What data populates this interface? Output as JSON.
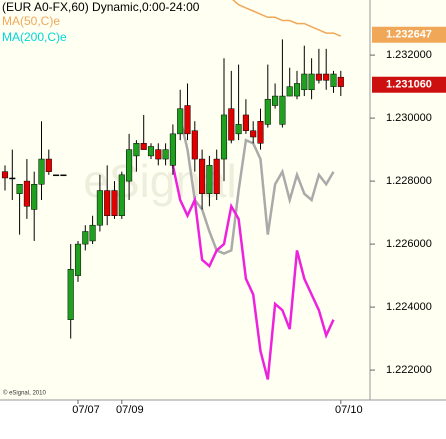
{
  "chart_data": {
    "type": "candlestick",
    "title": "(EUR A0-FX,60) Dynamic,0:00-24:00",
    "watermark": "eSignal",
    "copyright": "© eSignal, 2010",
    "categories": [
      null,
      null,
      null,
      null,
      null,
      null,
      null,
      null,
      null,
      null,
      "07/07",
      null,
      null,
      null,
      null,
      null,
      "07/09",
      null,
      null,
      null,
      null,
      null,
      null,
      null,
      null,
      null,
      null,
      null,
      null,
      null,
      null,
      null,
      null,
      null,
      null,
      null,
      null,
      null,
      null,
      null,
      null,
      null,
      null,
      null,
      null,
      null,
      "07/10"
    ],
    "open": [
      1.2283,
      1.2281,
      1.2276,
      1.228,
      1.2271,
      1.2279,
      1.2287,
      1.2282,
      1.2282,
      1.2236,
      1.225,
      1.226,
      1.2261,
      1.2266,
      1.2277,
      1.2277,
      1.2269,
      1.228,
      1.2288,
      1.2292,
      1.2288,
      1.229,
      1.2287,
      1.2285,
      1.2295,
      1.2304,
      1.2296,
      1.2287,
      1.2276,
      1.2287,
      1.2287,
      1.2303,
      1.2295,
      1.2301,
      1.2296,
      1.2299,
      1.2298,
      1.2304,
      1.2298,
      1.2307,
      1.2307,
      1.2309,
      1.2309,
      1.2314,
      1.2314,
      1.231,
      1.2313
    ],
    "high": [
      1.2285,
      1.229,
      1.2279,
      1.2287,
      1.2283,
      1.2299,
      1.229,
      1.2282,
      1.2282,
      1.226,
      1.2261,
      1.2266,
      1.2269,
      1.2282,
      1.2285,
      1.228,
      1.2283,
      1.2295,
      1.2293,
      1.2301,
      1.2292,
      1.2292,
      1.2292,
      1.2298,
      1.2309,
      1.2311,
      1.2299,
      1.229,
      1.2288,
      1.229,
      1.2319,
      1.2315,
      1.2317,
      1.2306,
      1.2299,
      1.2303,
      1.2317,
      1.2311,
      1.2325,
      1.2316,
      1.2315,
      1.2323,
      1.2319,
      1.2322,
      1.2322,
      1.2315,
      1.2315
    ],
    "low": [
      1.2277,
      1.2274,
      1.2263,
      1.2268,
      1.2261,
      1.2274,
      1.2282,
      1.2282,
      1.2282,
      1.223,
      1.2248,
      1.2258,
      1.226,
      1.2264,
      1.2266,
      1.2268,
      1.2268,
      1.2274,
      1.2283,
      1.229,
      1.2287,
      1.2285,
      1.2285,
      1.2282,
      1.2293,
      1.2293,
      1.2283,
      1.2271,
      1.2272,
      1.2274,
      1.228,
      1.2292,
      1.2293,
      1.2295,
      1.2292,
      1.229,
      1.2297,
      1.2303,
      1.2297,
      1.2307,
      1.2306,
      1.2307,
      1.2306,
      1.2311,
      1.2309,
      1.2308,
      1.2307
    ],
    "close": [
      1.2281,
      1.2281,
      1.2279,
      1.2272,
      1.2279,
      1.2287,
      1.2283,
      1.2282,
      1.2282,
      1.2252,
      1.226,
      1.2264,
      1.2266,
      1.2277,
      1.2269,
      1.2269,
      1.2282,
      1.229,
      1.2292,
      1.229,
      1.2291,
      1.2287,
      1.229,
      1.2295,
      1.2303,
      1.2295,
      1.2287,
      1.2276,
      1.2285,
      1.2276,
      1.2301,
      1.2293,
      1.2298,
      1.2296,
      1.2294,
      1.2292,
      1.2306,
      1.2307,
      1.2307,
      1.231,
      1.2311,
      1.2314,
      1.2314,
      1.2312,
      1.2312,
      1.2314,
      1.231
    ],
    "up_color": "#1fa01f",
    "down_color": "#e00000",
    "series": [
      {
        "name": "MA(50,C)e",
        "color": "#f0a858",
        "values": [
          null,
          null,
          null,
          null,
          null,
          null,
          null,
          null,
          null,
          null,
          null,
          null,
          null,
          null,
          null,
          null,
          null,
          null,
          null,
          null,
          null,
          null,
          null,
          null,
          null,
          null,
          null,
          null,
          null,
          null,
          null,
          1.2338,
          1.2336,
          1.2335,
          1.2334,
          1.2333,
          1.2332,
          1.2332,
          1.2331,
          1.2331,
          1.233,
          1.233,
          1.2329,
          1.2328,
          1.2327,
          1.2327,
          1.2326
        ]
      },
      {
        "name": "MA(200,C)e",
        "color": "#00d8d8",
        "values": [
          null,
          null,
          null,
          null,
          null,
          null,
          null,
          null,
          null,
          null,
          null,
          null,
          null,
          null,
          null,
          null,
          null,
          null,
          null,
          null,
          null,
          null,
          null,
          null,
          null,
          null,
          null,
          null,
          null,
          null,
          null,
          null,
          null,
          null,
          null,
          null,
          null,
          null,
          null,
          null,
          null,
          null,
          null,
          null,
          null,
          null,
          null
        ]
      }
    ],
    "overlays": [
      {
        "color": "#aaaaaa",
        "values": [
          null,
          null,
          null,
          null,
          null,
          null,
          null,
          null,
          null,
          null,
          null,
          null,
          null,
          null,
          null,
          null,
          null,
          null,
          null,
          null,
          null,
          null,
          null,
          null,
          1.23,
          1.229,
          1.2274,
          1.2271,
          1.2264,
          1.2258,
          1.2257,
          1.2258,
          1.2277,
          1.2293,
          1.2292,
          1.2287,
          1.2263,
          1.2279,
          1.2283,
          1.2274,
          1.2282,
          1.2276,
          1.2274,
          1.2282,
          1.2279,
          1.2283,
          null
        ]
      },
      {
        "color": "#ee22dd",
        "values": [
          null,
          null,
          null,
          null,
          null,
          null,
          null,
          null,
          null,
          null,
          null,
          null,
          null,
          null,
          null,
          null,
          null,
          null,
          null,
          null,
          null,
          null,
          null,
          1.2285,
          1.2274,
          1.2269,
          1.2274,
          1.2255,
          1.2253,
          1.2258,
          1.226,
          1.2272,
          1.2268,
          1.2249,
          1.2244,
          1.2226,
          1.2217,
          1.2241,
          1.2239,
          1.2233,
          1.2258,
          1.2249,
          1.2244,
          1.2239,
          1.2231,
          1.2236,
          null
        ]
      }
    ],
    "price_labels": [
      {
        "value": 1.232647,
        "label": "1.232647",
        "color": "#f0a858"
      },
      {
        "value": 1.23106,
        "label": "1.231060",
        "color": "#cc1010"
      }
    ],
    "ylim": [
      1.22105,
      1.23375
    ],
    "yticks": [
      {
        "value": 1.222,
        "label": "1.222000"
      },
      {
        "value": 1.224,
        "label": "1.224000"
      },
      {
        "value": 1.226,
        "label": "1.226000"
      },
      {
        "value": 1.228,
        "label": "1.228000"
      },
      {
        "value": 1.23,
        "label": "1.230000"
      },
      {
        "value": 1.232,
        "label": "1.232000"
      }
    ]
  }
}
